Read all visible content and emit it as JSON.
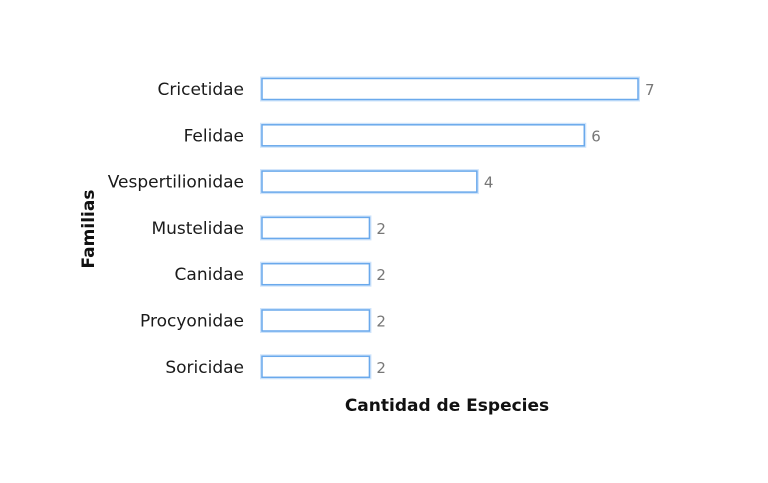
{
  "chart_data": {
    "type": "bar",
    "orientation": "horizontal",
    "categories": [
      "Cricetidae",
      "Felidae",
      "Vespertilionidae",
      "Mustelidae",
      "Canidae",
      "Procyonidae",
      "Soricidae"
    ],
    "values": [
      7,
      6,
      4,
      2,
      2,
      2,
      2
    ],
    "xlabel": "Cantidad de Especies",
    "ylabel": "Familias",
    "xlim": [
      0,
      7
    ],
    "grid": false,
    "legend": "none",
    "bar_fill": "#ffffff",
    "bar_stroke": "#6aa9ec"
  }
}
